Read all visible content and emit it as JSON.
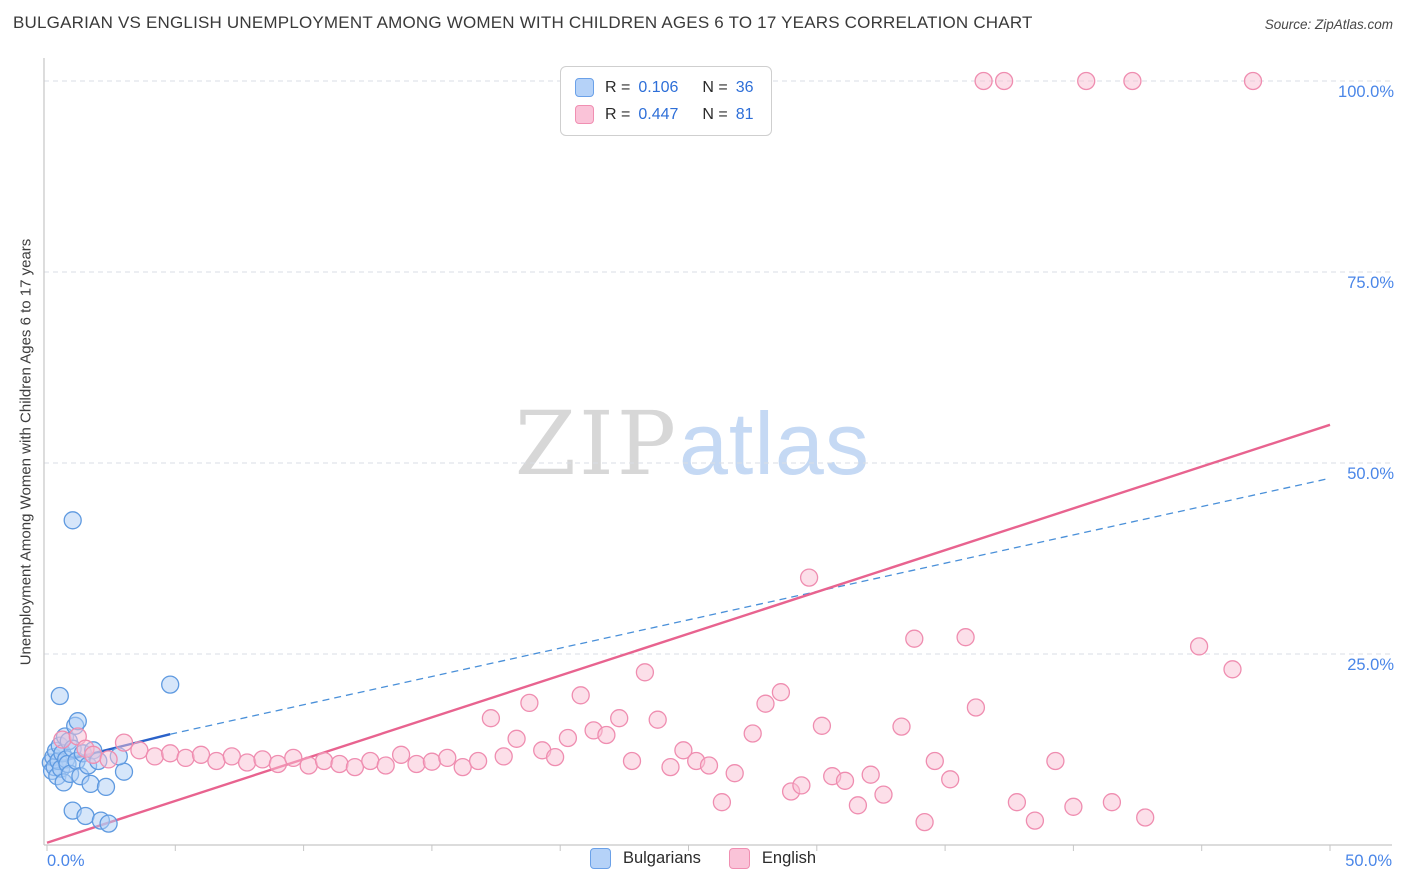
{
  "header": {
    "title": "BULGARIAN VS ENGLISH UNEMPLOYMENT AMONG WOMEN WITH CHILDREN AGES 6 TO 17 YEARS CORRELATION CHART",
    "source": "Source: ZipAtlas.com"
  },
  "watermark": {
    "zip": "ZIP",
    "atlas": "atlas"
  },
  "legend_box": {
    "rows": [
      {
        "r_label": "R =",
        "r_value": "0.106",
        "n_label": "N =",
        "n_value": "36"
      },
      {
        "r_label": "R =",
        "r_value": "0.447",
        "n_label": "N =",
        "n_value": "81"
      }
    ]
  },
  "bottom_legend": {
    "items": [
      {
        "label": "Bulgarians"
      },
      {
        "label": "English"
      }
    ]
  },
  "chart_data": {
    "type": "scatter",
    "title": "Bulgarian vs English Unemployment Among Women with Children Ages 6 to 17 years",
    "xlabel": "",
    "ylabel": "Unemployment Among Women with Children Ages 6 to 17 years",
    "xlim": [
      0,
      50
    ],
    "ylim": [
      0,
      100
    ],
    "grid": "horizontal-dashed",
    "legend_position": "bottom-center",
    "x_ticks": [
      {
        "value": 0,
        "label": "0.0%"
      },
      {
        "value": 50,
        "label": "50.0%"
      }
    ],
    "x_tick_marks": [
      0,
      5,
      10,
      15,
      20,
      25,
      30,
      35,
      40,
      45,
      50
    ],
    "y_ticks": [
      {
        "value": 25,
        "label": "25.0%"
      },
      {
        "value": 50,
        "label": "50.0%"
      },
      {
        "value": 75,
        "label": "75.0%"
      },
      {
        "value": 100,
        "label": "100.0%"
      }
    ],
    "series": [
      {
        "name": "Bulgarians",
        "R": 0.106,
        "N": 36,
        "fill": "#aecdf5",
        "stroke": "#5f9ae0",
        "points": [
          [
            0.15,
            10.8
          ],
          [
            0.2,
            9.7
          ],
          [
            0.25,
            11.5
          ],
          [
            0.3,
            10.2
          ],
          [
            0.35,
            12.3
          ],
          [
            0.4,
            9.0
          ],
          [
            0.45,
            11.0
          ],
          [
            0.5,
            13.0
          ],
          [
            0.55,
            10.0
          ],
          [
            0.6,
            12.0
          ],
          [
            0.65,
            8.2
          ],
          [
            0.7,
            14.2
          ],
          [
            0.75,
            11.2
          ],
          [
            0.8,
            10.6
          ],
          [
            0.85,
            13.6
          ],
          [
            0.9,
            9.3
          ],
          [
            1.0,
            12.6
          ],
          [
            1.0,
            4.5
          ],
          [
            1.1,
            15.6
          ],
          [
            1.15,
            11.0
          ],
          [
            1.2,
            16.2
          ],
          [
            1.3,
            9.0
          ],
          [
            1.4,
            12.0
          ],
          [
            1.5,
            3.8
          ],
          [
            1.6,
            10.4
          ],
          [
            1.7,
            8.0
          ],
          [
            1.8,
            12.4
          ],
          [
            2.0,
            11.0
          ],
          [
            2.1,
            3.2
          ],
          [
            2.3,
            7.6
          ],
          [
            2.4,
            2.8
          ],
          [
            0.5,
            19.5
          ],
          [
            1.0,
            42.5
          ],
          [
            4.8,
            21.0
          ],
          [
            3.0,
            9.6
          ],
          [
            2.8,
            11.6
          ]
        ]
      },
      {
        "name": "English",
        "R": 0.447,
        "N": 81,
        "fill": "#f9bfd4",
        "stroke": "#ef8db0",
        "points": [
          [
            0.6,
            13.8
          ],
          [
            1.2,
            14.2
          ],
          [
            1.5,
            12.6
          ],
          [
            1.8,
            11.8
          ],
          [
            2.4,
            11.2
          ],
          [
            3.0,
            13.4
          ],
          [
            3.6,
            12.4
          ],
          [
            4.2,
            11.6
          ],
          [
            4.8,
            12.0
          ],
          [
            5.4,
            11.4
          ],
          [
            6.0,
            11.8
          ],
          [
            6.6,
            11.0
          ],
          [
            7.2,
            11.6
          ],
          [
            7.8,
            10.8
          ],
          [
            8.4,
            11.2
          ],
          [
            9.0,
            10.6
          ],
          [
            9.6,
            11.4
          ],
          [
            10.2,
            10.4
          ],
          [
            10.8,
            11.0
          ],
          [
            11.4,
            10.6
          ],
          [
            12.0,
            10.2
          ],
          [
            12.6,
            11.0
          ],
          [
            13.2,
            10.4
          ],
          [
            13.8,
            11.8
          ],
          [
            14.4,
            10.6
          ],
          [
            15.0,
            10.9
          ],
          [
            15.6,
            11.4
          ],
          [
            16.2,
            10.2
          ],
          [
            16.8,
            11.0
          ],
          [
            17.3,
            16.6
          ],
          [
            17.8,
            11.6
          ],
          [
            18.3,
            13.9
          ],
          [
            18.8,
            18.6
          ],
          [
            19.3,
            12.4
          ],
          [
            19.8,
            11.5
          ],
          [
            20.3,
            14.0
          ],
          [
            20.8,
            19.6
          ],
          [
            21.3,
            15.0
          ],
          [
            21.8,
            14.4
          ],
          [
            22.3,
            16.6
          ],
          [
            22.8,
            11.0
          ],
          [
            23.3,
            22.6
          ],
          [
            23.8,
            16.4
          ],
          [
            24.3,
            10.2
          ],
          [
            24.8,
            12.4
          ],
          [
            25.3,
            11.0
          ],
          [
            25.8,
            10.4
          ],
          [
            26.3,
            5.6
          ],
          [
            26.8,
            9.4
          ],
          [
            27.5,
            14.6
          ],
          [
            28.0,
            18.5
          ],
          [
            28.6,
            20.0
          ],
          [
            29.0,
            7.0
          ],
          [
            29.4,
            7.8
          ],
          [
            30.2,
            15.6
          ],
          [
            30.6,
            9.0
          ],
          [
            31.1,
            8.4
          ],
          [
            31.6,
            5.2
          ],
          [
            32.1,
            9.2
          ],
          [
            32.6,
            6.6
          ],
          [
            33.3,
            15.5
          ],
          [
            33.8,
            27.0
          ],
          [
            34.2,
            3.0
          ],
          [
            34.6,
            11.0
          ],
          [
            35.2,
            8.6
          ],
          [
            35.8,
            27.2
          ],
          [
            36.2,
            18.0
          ],
          [
            37.8,
            5.6
          ],
          [
            38.5,
            3.2
          ],
          [
            39.3,
            11.0
          ],
          [
            40.0,
            5.0
          ],
          [
            41.5,
            5.6
          ],
          [
            42.8,
            3.6
          ],
          [
            44.9,
            26.0
          ],
          [
            46.2,
            23.0
          ],
          [
            29.7,
            35.0
          ],
          [
            36.5,
            100
          ],
          [
            37.3,
            100
          ],
          [
            40.5,
            100
          ],
          [
            42.3,
            100
          ],
          [
            47.0,
            100
          ]
        ]
      }
    ],
    "trend_lines": [
      {
        "series": "Bulgarians",
        "color": "#2b62c9",
        "dash_color": "#4a90d9",
        "solid": [
          [
            0,
            10.5
          ],
          [
            4.8,
            14.5
          ]
        ],
        "dashed": [
          [
            4.8,
            14.5
          ],
          [
            50,
            48
          ]
        ]
      },
      {
        "series": "English",
        "color": "#e8638f",
        "solid": [
          [
            0,
            0.3
          ],
          [
            50,
            55
          ]
        ]
      }
    ]
  }
}
